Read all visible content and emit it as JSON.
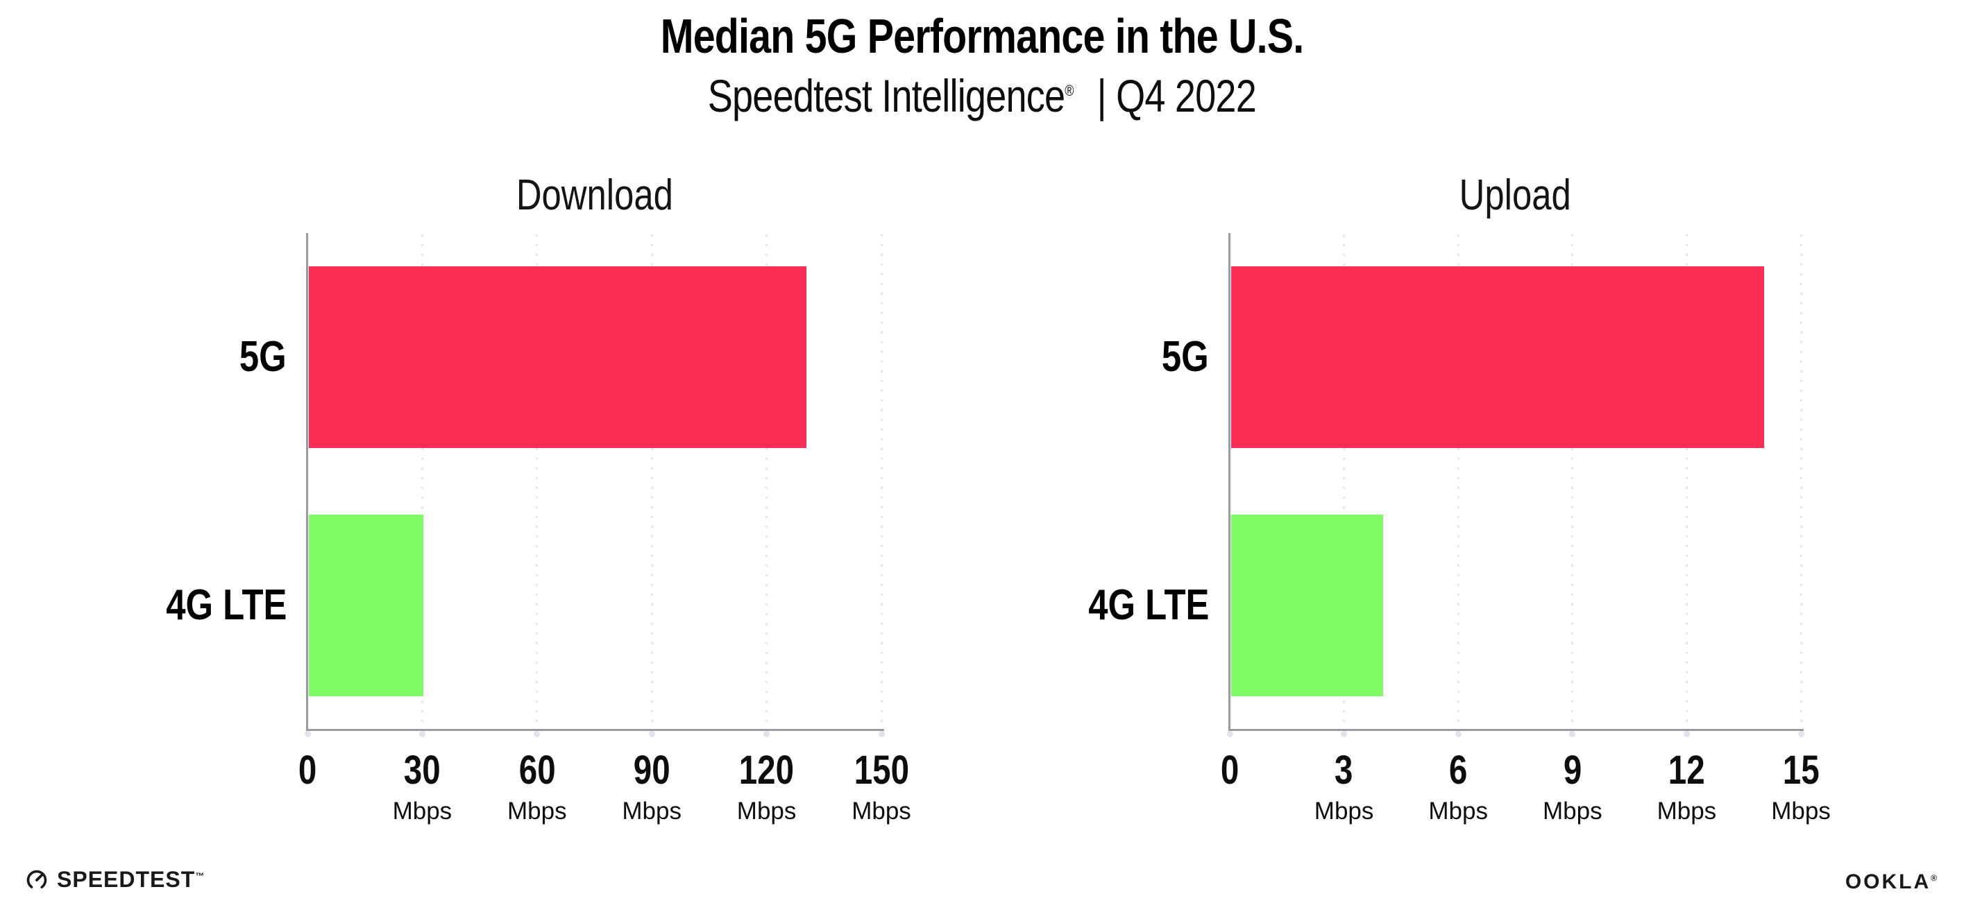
{
  "header": {
    "title": "Median 5G Performance in the U.S.",
    "subtitle_brand": "Speedtest Intelligence",
    "subtitle_reg": "®",
    "subtitle_rest": "| Q4 2022"
  },
  "colors": {
    "bar_5g": "#fc2e56",
    "bar_4g_lte": "#7efa65",
    "axis": "#9a9aa2",
    "gridline": "#e4e4ee",
    "tick_dot": "#e2e2ef",
    "text": "#000000"
  },
  "chart_data": [
    {
      "type": "bar",
      "orientation": "horizontal",
      "title": "Download",
      "categories": [
        "5G",
        "4G LTE"
      ],
      "values": [
        130,
        30
      ],
      "unit": "Mbps",
      "xlim": [
        0,
        150
      ],
      "xticks": [
        0,
        30,
        60,
        90,
        120,
        150
      ],
      "bar_colors": [
        "#fc2e56",
        "#7efa65"
      ],
      "grid": "dotted-vertical",
      "legend": "none"
    },
    {
      "type": "bar",
      "orientation": "horizontal",
      "title": "Upload",
      "categories": [
        "5G",
        "4G LTE"
      ],
      "values": [
        14,
        4
      ],
      "unit": "Mbps",
      "xlim": [
        0,
        15
      ],
      "xticks": [
        0,
        3,
        6,
        9,
        12,
        15
      ],
      "bar_colors": [
        "#fc2e56",
        "#7efa65"
      ],
      "grid": "dotted-vertical",
      "legend": "none"
    }
  ],
  "footer": {
    "speedtest_label": "SPEEDTEST",
    "speedtest_tm": "™",
    "ookla_label": "OOKLA",
    "ookla_reg": "®"
  }
}
